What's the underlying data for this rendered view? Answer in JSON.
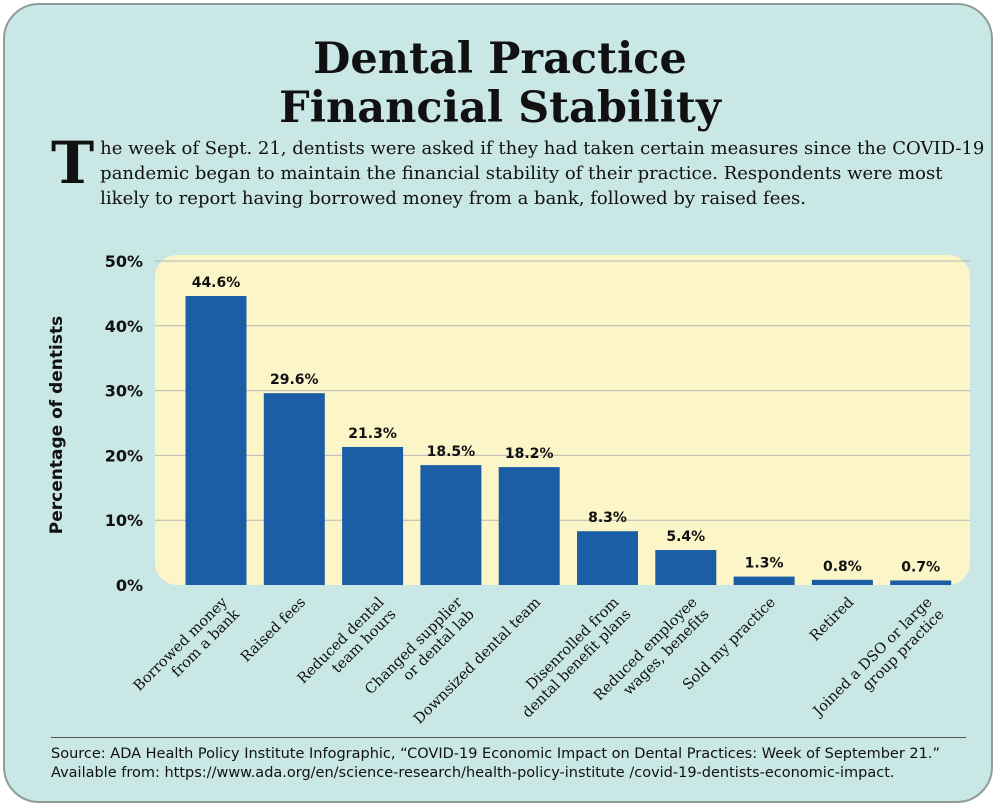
{
  "title_line1": "Dental Practice",
  "title_line2": "Financial Stability",
  "intro": {
    "dropcap": "T",
    "text": "he week of Sept. 21, dentists were asked if they had taken certain measures since the COVID-19 pandemic began to maintain the financial stability of their practice. Respondents were most likely to report having borrowed money from a bank, followed by raised fees."
  },
  "colors": {
    "card_background": "#c9e7e4",
    "plot_background": "#fbf5c8",
    "bar": "#1c5ea6",
    "grid": "#b7b7b7"
  },
  "chart_data": {
    "type": "bar",
    "ylabel": "Percentage of dentists",
    "xlabel": "",
    "ylim": [
      0,
      50
    ],
    "y_ticks": [
      0,
      10,
      20,
      30,
      40,
      50
    ],
    "y_tick_labels": [
      "0%",
      "10%",
      "20%",
      "30%",
      "40%",
      "50%"
    ],
    "grid": true,
    "categories": [
      [
        "Borrowed money",
        "from a bank"
      ],
      [
        "Raised fees"
      ],
      [
        "Reduced dental",
        "team hours"
      ],
      [
        "Changed supplier",
        "or dental lab"
      ],
      [
        "Downsized dental team"
      ],
      [
        "Disenrolled from",
        "dental benefit plans"
      ],
      [
        "Reduced employee",
        "wages, benefits"
      ],
      [
        "Sold my practice"
      ],
      [
        "Retired"
      ],
      [
        "Joined a DSO or large",
        "group practice"
      ]
    ],
    "values": [
      44.6,
      29.6,
      21.3,
      18.5,
      18.2,
      8.3,
      5.4,
      1.3,
      0.8,
      0.7
    ],
    "data_labels": [
      "44.6%",
      "29.6%",
      "21.3%",
      "18.5%",
      "18.2%",
      "8.3%",
      "5.4%",
      "1.3%",
      "0.8%",
      "0.7%"
    ]
  },
  "source": "Source: ADA Health Policy Institute Infographic, “COVID-19 Economic Impact on Dental Practices: Week of September 21.” Available from: https://www.ada.org/en/science-research/health-policy-institute /covid-19-dentists-economic-impact."
}
